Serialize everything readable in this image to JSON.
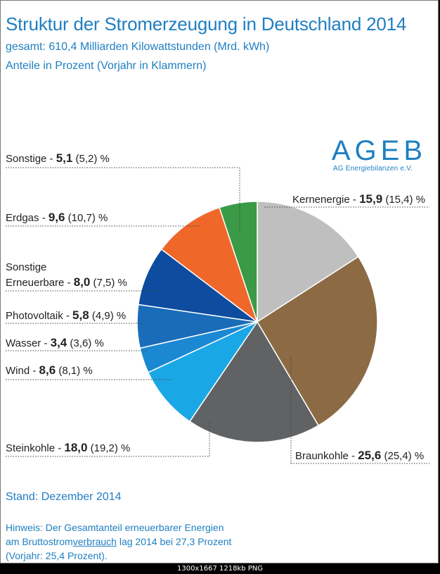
{
  "header": {
    "title": "Struktur der Stromerzeugung in Deutschland 2014",
    "subtitle1": "gesamt: 610,4 Milliarden Kilowattstunden (Mrd. kWh)",
    "subtitle2": "Anteile in Prozent (Vorjahr in Klammern)"
  },
  "logo": {
    "text": "AGEB",
    "subtext": "AG Energiebilanzen e.V."
  },
  "chart_data": {
    "type": "pie",
    "unit": "%",
    "slices": [
      {
        "name": "Kernenergie",
        "value": 15.9,
        "prev": 15.4,
        "value_text": "15,9",
        "prev_text": "(15,4)",
        "color": "#bfbfbf"
      },
      {
        "name": "Braunkohle",
        "value": 25.6,
        "prev": 25.4,
        "value_text": "25,6",
        "prev_text": "(25,4)",
        "color": "#8b6a44"
      },
      {
        "name": "Steinkohle",
        "value": 18.0,
        "prev": 19.2,
        "value_text": "18,0",
        "prev_text": "(19,2)",
        "color": "#616264"
      },
      {
        "name": "Wind",
        "value": 8.6,
        "prev": 8.1,
        "value_text": "8,6",
        "prev_text": "(8,1)",
        "color": "#1aa7e6"
      },
      {
        "name": "Wasser",
        "value": 3.4,
        "prev": 3.6,
        "value_text": "3,4",
        "prev_text": "(3,6)",
        "color": "#1a88d2"
      },
      {
        "name": "Photovoltaik",
        "value": 5.8,
        "prev": 4.9,
        "value_text": "5,8",
        "prev_text": "(4,9)",
        "color": "#1a6cb9"
      },
      {
        "name": "Sonstige Erneuerbare",
        "name_line1": "Sonstige",
        "name_line2": "Erneuerbare",
        "value": 8.0,
        "prev": 7.5,
        "value_text": "8,0",
        "prev_text": "(7,5)",
        "color": "#0d4c9e"
      },
      {
        "name": "Erdgas",
        "value": 9.6,
        "prev": 10.7,
        "value_text": "9,6",
        "prev_text": "(10,7)",
        "color": "#f0672a"
      },
      {
        "name": "Sonstige",
        "value": 5.1,
        "prev": 5.2,
        "value_text": "5,1",
        "prev_text": "(5,2)",
        "color": "#3a9a45"
      }
    ]
  },
  "footer_notes": {
    "stand": "Stand: Dezember 2014",
    "hint_line1": "Hinweis: Der Gesamtanteil erneuerbarer Energien",
    "hint_line2_a": "am Bruttostrom",
    "hint_line2_u": "verbrauch",
    "hint_line2_b": " lag 2014 bei 27,3 Prozent",
    "hint_line3": "(Vorjahr: 25,4 Prozent)."
  },
  "image_footer": "1300x1667  1218kb  PNG"
}
